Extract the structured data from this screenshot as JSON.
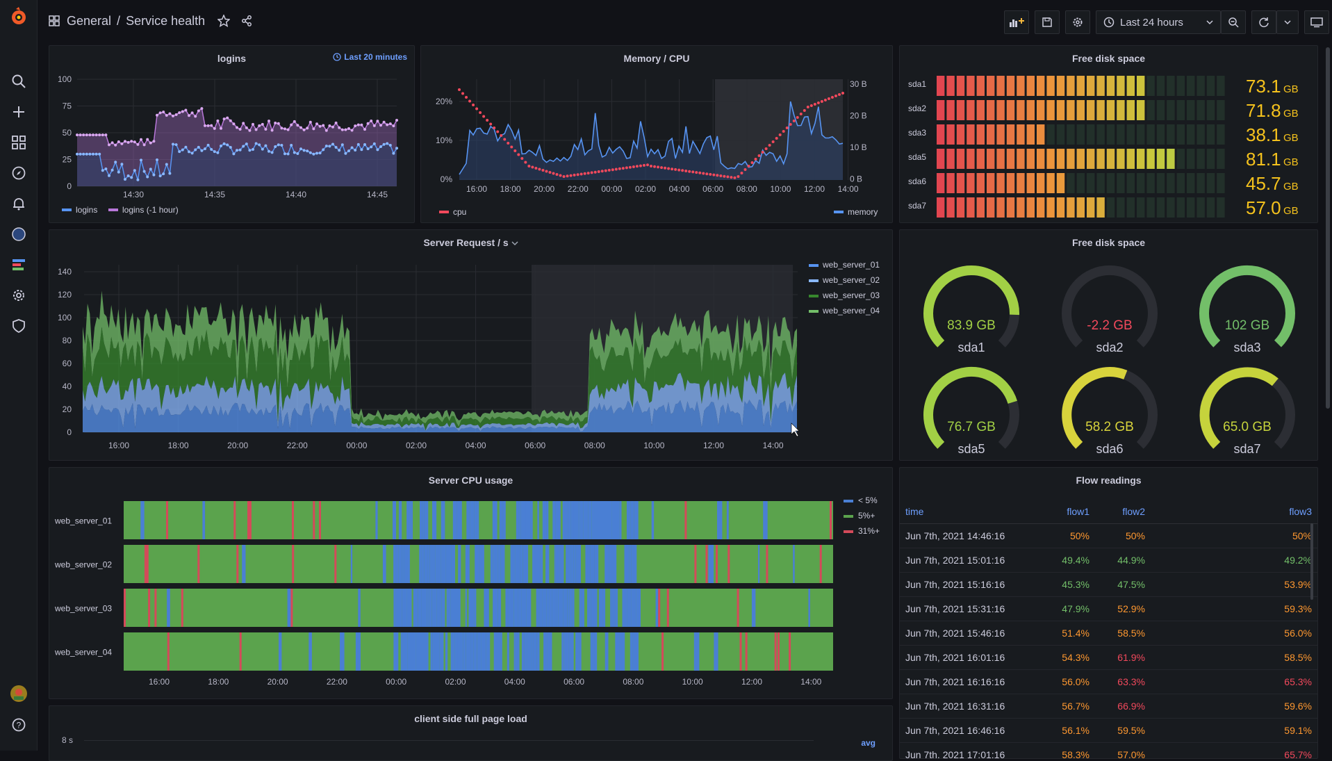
{
  "breadcrumb": {
    "folder": "General",
    "separator": "/",
    "title": "Service health"
  },
  "toolbar": {
    "time_range": "Last 24 hours"
  },
  "colors": {
    "bg": "#111217",
    "panel": "#181b1f",
    "blue": "#5794f2",
    "purple": "#b877d9",
    "red": "#f2495c",
    "green": "#73bf69",
    "yellow": "#fade2a",
    "orange": "#ff9830",
    "dark_green": "#37872d"
  },
  "panels": {
    "logins": {
      "title": "logins",
      "time_info": "Last 20 minutes",
      "y_ticks": [
        "100",
        "75",
        "50",
        "25",
        "0"
      ],
      "x_ticks": [
        "14:30",
        "14:35",
        "14:40",
        "14:45"
      ],
      "legend": [
        "logins",
        "logins (-1 hour)"
      ]
    },
    "memcpu": {
      "title": "Memory / CPU",
      "y_left": [
        "20%",
        "10%",
        "0%"
      ],
      "y_right": [
        "30 B",
        "20 B",
        "10 B",
        "0 B"
      ],
      "x_ticks": [
        "16:00",
        "18:00",
        "20:00",
        "22:00",
        "00:00",
        "02:00",
        "04:00",
        "06:00",
        "08:00",
        "10:00",
        "12:00",
        "14:00"
      ],
      "legend_left": "cpu",
      "legend_right": "memory"
    },
    "disk_bars": {
      "title": "Free disk space",
      "unit": "GB",
      "rows": [
        {
          "name": "sda1",
          "value": "73.1",
          "fill": 0.74
        },
        {
          "name": "sda2",
          "value": "71.8",
          "fill": 0.74
        },
        {
          "name": "sda3",
          "value": "38.1",
          "fill": 0.39
        },
        {
          "name": "sda5",
          "value": "81.1",
          "fill": 0.83
        },
        {
          "name": "sda6",
          "value": "45.7",
          "fill": 0.45
        },
        {
          "name": "sda7",
          "value": "57.0",
          "fill": 0.57
        }
      ]
    },
    "requests": {
      "title": "Server Request / s",
      "y_ticks": [
        "140",
        "120",
        "100",
        "80",
        "60",
        "40",
        "20",
        "0"
      ],
      "x_ticks": [
        "16:00",
        "18:00",
        "20:00",
        "22:00",
        "00:00",
        "02:00",
        "04:00",
        "06:00",
        "08:00",
        "10:00",
        "12:00",
        "14:00"
      ],
      "legend": [
        "web_server_01",
        "web_server_02",
        "web_server_03",
        "web_server_04"
      ]
    },
    "gauges": {
      "title": "Free disk space",
      "items": [
        {
          "name": "sda1",
          "value": "83.9 GB",
          "fraction": 0.84,
          "color": "#a2d045"
        },
        {
          "name": "sda2",
          "value": "-2.2 GB",
          "fraction": 0.0,
          "color": "#f2495c"
        },
        {
          "name": "sda3",
          "value": "102 GB",
          "fraction": 1.0,
          "color": "#73bf69"
        },
        {
          "name": "sda5",
          "value": "76.7 GB",
          "fraction": 0.77,
          "color": "#a2d045"
        },
        {
          "name": "sda6",
          "value": "58.2 GB",
          "fraction": 0.58,
          "color": "#d8d33c"
        },
        {
          "name": "sda7",
          "value": "65.0 GB",
          "fraction": 0.65,
          "color": "#c6d33c"
        }
      ]
    },
    "cpu": {
      "title": "Server CPU usage",
      "rows": [
        "web_server_01",
        "web_server_02",
        "web_server_03",
        "web_server_04"
      ],
      "x_ticks": [
        "16:00",
        "18:00",
        "20:00",
        "22:00",
        "00:00",
        "02:00",
        "04:00",
        "06:00",
        "08:00",
        "10:00",
        "12:00",
        "14:00"
      ],
      "legend": [
        "< 5%",
        "5%+",
        "31%+"
      ]
    },
    "flow": {
      "title": "Flow readings",
      "columns": [
        "time",
        "flow1",
        "flow2",
        "flow3"
      ],
      "rows": [
        [
          "Jun 7th, 2021 14:46:16",
          "50%",
          "50%",
          "50%"
        ],
        [
          "Jun 7th, 2021 15:01:16",
          "49.4%",
          "44.9%",
          "49.2%"
        ],
        [
          "Jun 7th, 2021 15:16:16",
          "45.3%",
          "47.5%",
          "53.9%"
        ],
        [
          "Jun 7th, 2021 15:31:16",
          "47.9%",
          "52.9%",
          "59.3%"
        ],
        [
          "Jun 7th, 2021 15:46:16",
          "51.4%",
          "58.5%",
          "56.0%"
        ],
        [
          "Jun 7th, 2021 16:01:16",
          "54.3%",
          "61.9%",
          "58.5%"
        ],
        [
          "Jun 7th, 2021 16:16:16",
          "56.0%",
          "63.3%",
          "65.3%"
        ],
        [
          "Jun 7th, 2021 16:31:16",
          "56.7%",
          "66.9%",
          "59.6%"
        ],
        [
          "Jun 7th, 2021 16:46:16",
          "56.1%",
          "59.5%",
          "59.1%"
        ],
        [
          "Jun 7th, 2021 17:01:16",
          "58.3%",
          "57.0%",
          "65.7%"
        ]
      ],
      "cell_colors": [
        [
          "#ff9830",
          "#ff9830",
          "#ff9830"
        ],
        [
          "#73bf69",
          "#73bf69",
          "#73bf69"
        ],
        [
          "#73bf69",
          "#73bf69",
          "#ff9830"
        ],
        [
          "#73bf69",
          "#ff9830",
          "#ff9830"
        ],
        [
          "#ff9830",
          "#ff9830",
          "#ff9830"
        ],
        [
          "#ff9830",
          "#f2495c",
          "#ff9830"
        ],
        [
          "#ff9830",
          "#f2495c",
          "#f2495c"
        ],
        [
          "#ff9830",
          "#f2495c",
          "#ff9830"
        ],
        [
          "#ff9830",
          "#ff9830",
          "#ff9830"
        ],
        [
          "#ff9830",
          "#ff9830",
          "#f2495c"
        ]
      ]
    },
    "pageload": {
      "title": "client side full page load",
      "y_tick": "8 s",
      "legend": "avg"
    }
  }
}
